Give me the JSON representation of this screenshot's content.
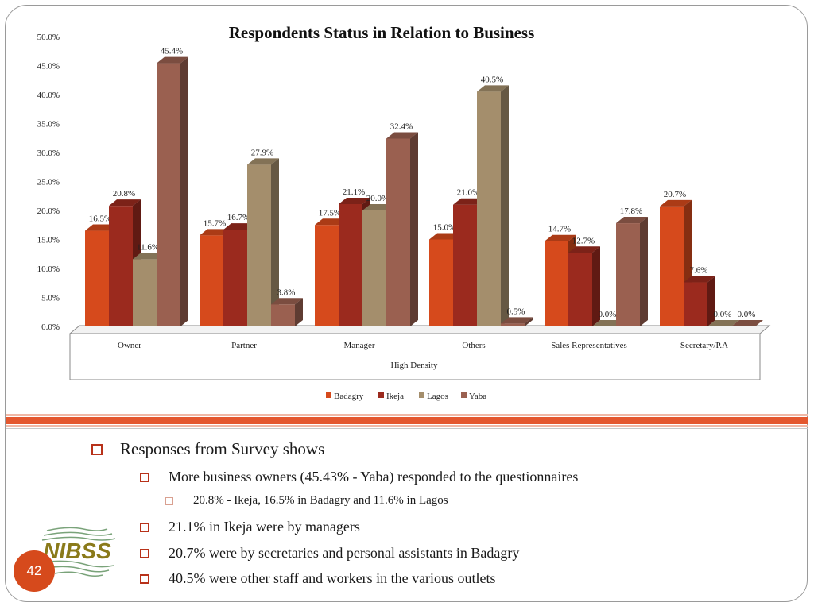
{
  "slide": {
    "page_number": "42",
    "logo_text": "NIBSS",
    "accent_color": "#d64a1c"
  },
  "bullets": [
    {
      "level": 1,
      "text": "Responses from Survey shows"
    },
    {
      "level": 2,
      "text": "More business owners (45.43% - Yaba) responded to the questionnaires"
    },
    {
      "level": 3,
      "text": "20.8% - Ikeja, 16.5% in Badagry and 11.6%  in Lagos"
    },
    {
      "level": 2,
      "text": "21.1% in Ikeja were by managers"
    },
    {
      "level": 2,
      "text": "20.7% were by secretaries and personal assistants in Badagry"
    },
    {
      "level": 2,
      "text": "40.5% were other staff and workers in the various outlets"
    }
  ],
  "chart_data": {
    "type": "bar",
    "title": "Respondents Status in Relation to Business",
    "xlabel": "High Density",
    "ylabel": "",
    "ylim": [
      0,
      50
    ],
    "yticks": [
      "0.0%",
      "5.0%",
      "10.0%",
      "15.0%",
      "20.0%",
      "25.0%",
      "30.0%",
      "35.0%",
      "40.0%",
      "45.0%",
      "50.0%"
    ],
    "categories": [
      "Owner",
      "Partner",
      "Manager",
      "Others",
      "Sales Representatives",
      "Secretary/P.A"
    ],
    "series": [
      {
        "name": "Badagry",
        "color": "#d64a1c",
        "values": [
          16.5,
          15.7,
          17.5,
          15.0,
          14.7,
          20.7
        ],
        "labels": [
          "16.5%",
          "15.7%",
          "17.5%",
          "15.0%",
          "14.7%",
          "20.7%"
        ]
      },
      {
        "name": "Ikeja",
        "color": "#9b2a1e",
        "values": [
          20.8,
          16.7,
          21.1,
          21.0,
          12.7,
          7.6
        ],
        "labels": [
          "20.8%",
          "16.7%",
          "21.1%",
          "21.0%",
          "12.7%",
          "7.6%"
        ]
      },
      {
        "name": "Lagos",
        "color": "#a48e6c",
        "values": [
          11.6,
          27.9,
          20.0,
          40.5,
          0.0,
          0.0
        ],
        "labels": [
          "11.6%",
          "27.9%",
          "20.0%",
          "40.5%",
          "0.0%",
          "0.0%"
        ]
      },
      {
        "name": "Yaba",
        "color": "#9a6050",
        "values": [
          45.4,
          3.8,
          32.4,
          0.5,
          17.8,
          0.0
        ],
        "labels": [
          "45.4%",
          "3.8%",
          "32.4%",
          "0.5%",
          "17.8%",
          "0.0%"
        ]
      }
    ],
    "legend_position": "bottom",
    "grid": false
  }
}
